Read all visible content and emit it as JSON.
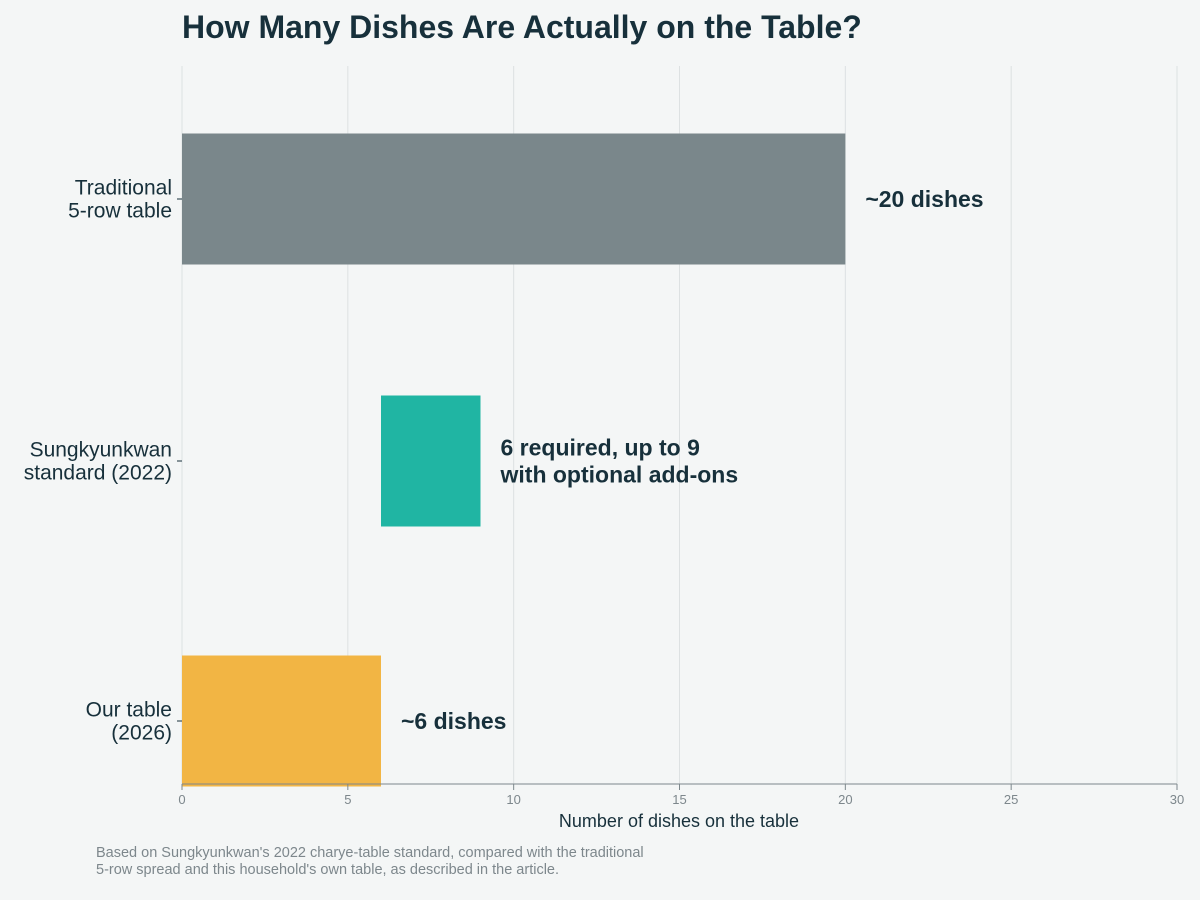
{
  "chart_data": {
    "type": "bar",
    "orientation": "horizontal",
    "title": "How Many Dishes Are Actually on the Table?",
    "xlabel": "Number of dishes on the table",
    "ylabel": "",
    "xlim": [
      0,
      30
    ],
    "xticks": [
      0,
      5,
      10,
      15,
      20,
      25,
      30
    ],
    "grid": true,
    "categories": [
      {
        "lines": [
          "Traditional",
          "5-row table"
        ]
      },
      {
        "lines": [
          "Sungkyunkwan",
          "standard (2022)"
        ]
      },
      {
        "lines": [
          "Our table",
          "(2026)"
        ]
      }
    ],
    "bars": [
      {
        "start": 0,
        "end": 20,
        "color": "#7a878b",
        "label_lines": [
          "~20 dishes"
        ]
      },
      {
        "start": 6,
        "end": 9,
        "color": "#20b5a3",
        "label_lines": [
          "6 required, up to 9",
          "with optional add-ons"
        ]
      },
      {
        "start": 0,
        "end": 6,
        "color": "#f2b544",
        "label_lines": [
          "~6 dishes"
        ]
      }
    ],
    "footnote": [
      "Based on Sungkyunkwan's 2022 charye-table standard, compared with the traditional",
      "5-row spread and this household's own table, as described in the article."
    ]
  }
}
